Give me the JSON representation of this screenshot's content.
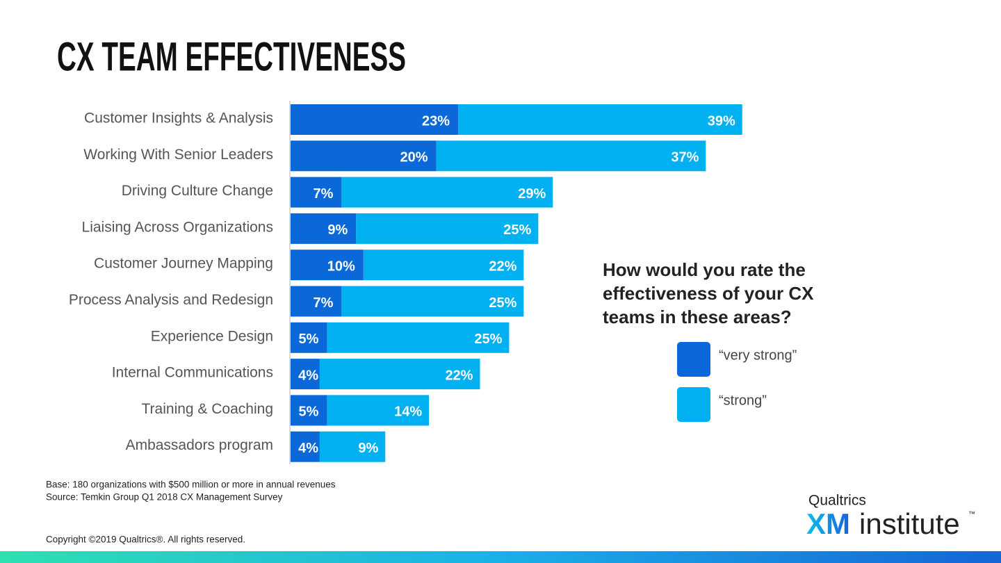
{
  "chart_data": {
    "type": "stacked-bar",
    "orientation": "horizontal",
    "title": "CX TEAM EFFECTIVENESS",
    "question": [
      "How would you rate the",
      "effectiveness of your CX",
      "teams in these areas?"
    ],
    "categories": [
      "Customer Insights & Analysis",
      "Working With Senior Leaders",
      "Driving Culture Change",
      "Liaising Across Organizations",
      "Customer Journey Mapping",
      "Process Analysis and Redesign",
      "Experience Design",
      "Internal Communications",
      "Training & Coaching",
      "Ambassadors program"
    ],
    "series": [
      {
        "name": "“very strong”",
        "color": "#0a68d8",
        "values": [
          23,
          20,
          7,
          9,
          10,
          7,
          5,
          4,
          5,
          4
        ],
        "value_labels": [
          "23%",
          "20%",
          "7%",
          "9%",
          "10%",
          "7%",
          "5%",
          "4%",
          "5%",
          "4%"
        ]
      },
      {
        "name": "“strong”",
        "color": "#00b0f0",
        "values": [
          39,
          37,
          29,
          25,
          22,
          25,
          25,
          22,
          14,
          9
        ],
        "value_labels": [
          "39%",
          "37%",
          "29%",
          "25%",
          "22%",
          "25%",
          "25%",
          "22%",
          "14%",
          "9%"
        ]
      }
    ],
    "notes": [
      "Base: 180 organizations with $500 million or more in annual revenues",
      "Source: Temkin Group Q1 2018 CX Management Survey"
    ],
    "copyright": "Copyright ©2019 Qualtrics®. All rights reserved.",
    "logo": {
      "top": "Qualtrics",
      "xm": "XM",
      "rest": "institute",
      "tm": "™"
    }
  }
}
